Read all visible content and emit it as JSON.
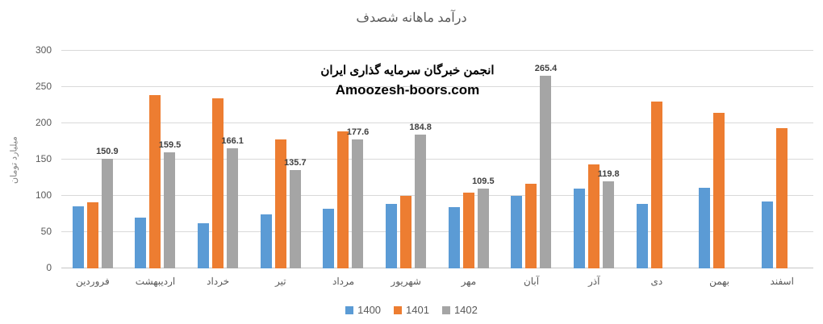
{
  "chart_data": {
    "type": "bar",
    "title": "درآمد ماهانه شصدف",
    "ylabel": "میلیارد تومان",
    "xlabel": "",
    "ylim": [
      0,
      300
    ],
    "yticks": [
      0,
      50,
      100,
      150,
      200,
      250,
      300
    ],
    "grid": true,
    "legend_position": "bottom",
    "categories": [
      "فروردین",
      "اردیبهشت",
      "خرداد",
      "تیر",
      "مرداد",
      "شهریور",
      "مهر",
      "آبان",
      "آذر",
      "دی",
      "بهمن",
      "اسفند"
    ],
    "series": [
      {
        "name": "1400",
        "color": "#5B9BD5",
        "data_labels": false,
        "values": [
          86,
          70,
          62,
          74,
          82,
          89,
          84,
          100,
          110,
          89,
          111,
          92
        ]
      },
      {
        "name": "1401",
        "color": "#ED7D31",
        "data_labels": false,
        "values": [
          91,
          239,
          235,
          178,
          189,
          100,
          104,
          117,
          143,
          230,
          215,
          193
        ]
      },
      {
        "name": "1402",
        "color": "#A5A5A5",
        "data_labels": true,
        "values": [
          150.9,
          159.5,
          166.1,
          135.7,
          177.6,
          184.8,
          109.5,
          265.4,
          119.8,
          null,
          null,
          null
        ]
      }
    ],
    "watermark": {
      "line1": "انجمن خبرگان سرمایه گذاری ایران",
      "line2": "Amoozesh-boors.com"
    },
    "colors": {
      "gridline": "#D9D9D9",
      "axis_text": "#595959",
      "title_text": "#595959",
      "data_label_text": "#404040",
      "watermark_text": "#000000"
    }
  }
}
